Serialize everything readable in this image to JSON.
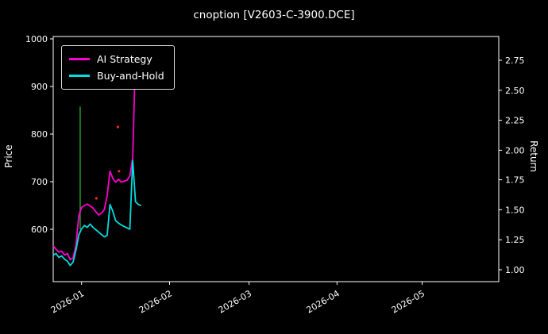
{
  "title": "cnoption [V2603-C-3900.DCE]",
  "colors": {
    "background": "#000000",
    "text": "#ffffff",
    "axis": "#ffffff",
    "ai": "#ff00d0",
    "bh": "#00dde0",
    "event": "#22a022",
    "signal": "#ff2222"
  },
  "legend": {
    "items": [
      {
        "label": "AI Strategy",
        "color_key": "ai"
      },
      {
        "label": "Buy-and-Hold",
        "color_key": "bh"
      }
    ]
  },
  "axes": {
    "left_label": "Price",
    "right_label": "Return"
  },
  "chart_data": {
    "type": "line",
    "title": "cnoption [V2603-C-3900.DCE]",
    "xlabel": "",
    "ylabel_left": "Price",
    "ylabel_right": "Return",
    "x_tick_labels": [
      "2026-01",
      "2026-02",
      "2026-03",
      "2026-04",
      "2026-05"
    ],
    "x_tick_days": [
      10,
      41,
      69,
      100,
      130
    ],
    "x_range_days": [
      0,
      157
    ],
    "left_ticks": [
      600,
      700,
      800,
      900,
      1000
    ],
    "left_ylim": [
      490,
      1005
    ],
    "right_ticks": [
      {
        "label": "1.00",
        "at_price": 515
      },
      {
        "label": "1.25",
        "at_price": 578
      },
      {
        "label": "1.50",
        "at_price": 641
      },
      {
        "label": "1.75",
        "at_price": 704
      },
      {
        "label": "2.00",
        "at_price": 766
      },
      {
        "label": "2.25",
        "at_price": 829
      },
      {
        "label": "2.50",
        "at_price": 892
      },
      {
        "label": "2.75",
        "at_price": 955
      }
    ],
    "legend_position": "upper left",
    "grid": false,
    "series": [
      {
        "name": "AI Strategy",
        "color": "#ff00d0",
        "points": [
          [
            0,
            565
          ],
          [
            1,
            558
          ],
          [
            2,
            552
          ],
          [
            3,
            554
          ],
          [
            4,
            546
          ],
          [
            5,
            549
          ],
          [
            6,
            536
          ],
          [
            7,
            540
          ],
          [
            8,
            566
          ],
          [
            9,
            628
          ],
          [
            10,
            646
          ],
          [
            11,
            650
          ],
          [
            12,
            653
          ],
          [
            13,
            649
          ],
          [
            14,
            645
          ],
          [
            15,
            637
          ],
          [
            16,
            630
          ],
          [
            17,
            634
          ],
          [
            18,
            641
          ],
          [
            19,
            670
          ],
          [
            20,
            722
          ],
          [
            21,
            707
          ],
          [
            22,
            699
          ],
          [
            23,
            705
          ],
          [
            24,
            699
          ],
          [
            25,
            701
          ],
          [
            26,
            703
          ],
          [
            27,
            712
          ],
          [
            28,
            750
          ],
          [
            29,
            968
          ]
        ]
      },
      {
        "name": "Buy-and-Hold",
        "color": "#00dde0",
        "points": [
          [
            0,
            546
          ],
          [
            1,
            549
          ],
          [
            2,
            541
          ],
          [
            3,
            544
          ],
          [
            4,
            537
          ],
          [
            5,
            533
          ],
          [
            6,
            524
          ],
          [
            7,
            531
          ],
          [
            8,
            556
          ],
          [
            9,
            588
          ],
          [
            10,
            601
          ],
          [
            11,
            608
          ],
          [
            12,
            604
          ],
          [
            13,
            611
          ],
          [
            14,
            604
          ],
          [
            15,
            599
          ],
          [
            16,
            594
          ],
          [
            17,
            589
          ],
          [
            18,
            584
          ],
          [
            19,
            587
          ],
          [
            20,
            652
          ],
          [
            21,
            638
          ],
          [
            22,
            618
          ],
          [
            23,
            613
          ],
          [
            24,
            609
          ],
          [
            25,
            606
          ],
          [
            26,
            603
          ],
          [
            27,
            600
          ],
          [
            28,
            745
          ],
          [
            29,
            658
          ],
          [
            30,
            652
          ],
          [
            31,
            650
          ]
        ]
      }
    ],
    "event_vline": {
      "day": 9.5,
      "price_from": 600,
      "price_to": 858,
      "color": "#22a022"
    },
    "signals": [
      {
        "day": 15.2,
        "price": 665
      },
      {
        "day": 22.8,
        "price": 815
      },
      {
        "day": 23.2,
        "price": 722
      }
    ],
    "signal_color": "#ff2222"
  }
}
